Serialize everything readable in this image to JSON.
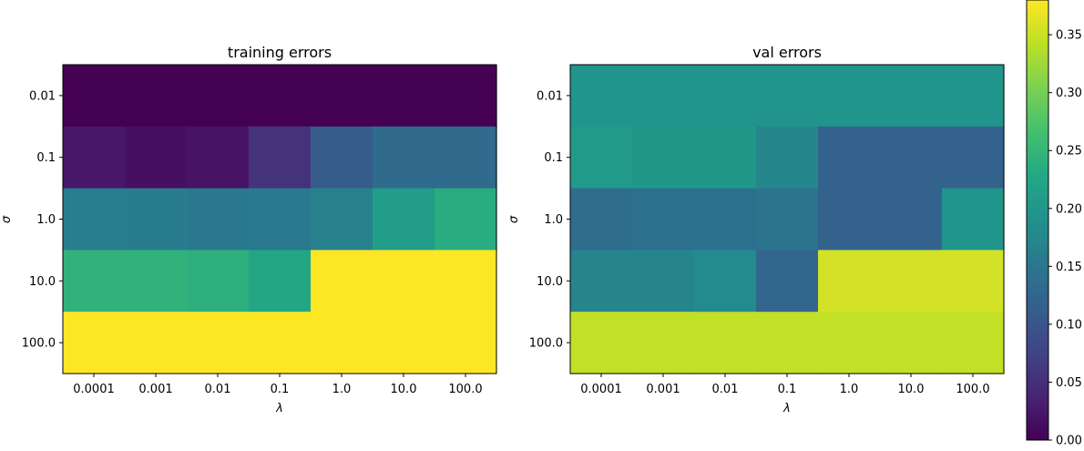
{
  "chart_data": {
    "type": "heatmap",
    "colormap": "viridis",
    "color_range": [
      0,
      0.38
    ],
    "panels": [
      {
        "title": "training errors",
        "xlabel": "λ",
        "ylabel": "σ",
        "x_categories": [
          "0.0001",
          "0.001",
          "0.01",
          "0.1",
          "1.0",
          "10.0",
          "100.0"
        ],
        "y_categories": [
          "0.01",
          "0.1",
          "1.0",
          "10.0",
          "100.0"
        ],
        "values": [
          [
            0.0,
            0.0,
            0.0,
            0.0,
            0.0,
            0.0,
            0.0
          ],
          [
            0.025,
            0.015,
            0.02,
            0.055,
            0.11,
            0.13,
            0.13
          ],
          [
            0.16,
            0.158,
            0.152,
            0.155,
            0.165,
            0.21,
            0.235
          ],
          [
            0.245,
            0.245,
            0.24,
            0.225,
            0.38,
            0.38,
            0.38
          ],
          [
            0.38,
            0.38,
            0.38,
            0.38,
            0.38,
            0.38,
            0.38
          ]
        ]
      },
      {
        "title": "val errors",
        "xlabel": "λ",
        "ylabel": "σ",
        "x_categories": [
          "0.0001",
          "0.001",
          "0.01",
          "0.1",
          "1.0",
          "10.0",
          "100.0"
        ],
        "y_categories": [
          "0.01",
          "0.1",
          "1.0",
          "10.0",
          "100.0"
        ],
        "values": [
          [
            0.195,
            0.195,
            0.195,
            0.195,
            0.195,
            0.195,
            0.195
          ],
          [
            0.205,
            0.2,
            0.2,
            0.175,
            0.12,
            0.12,
            0.12
          ],
          [
            0.135,
            0.14,
            0.14,
            0.145,
            0.12,
            0.12,
            0.195
          ],
          [
            0.17,
            0.17,
            0.18,
            0.125,
            0.355,
            0.355,
            0.355
          ],
          [
            0.345,
            0.345,
            0.345,
            0.345,
            0.345,
            0.345,
            0.345
          ]
        ]
      }
    ],
    "colorbar": {
      "ticks": [
        0.0,
        0.05,
        0.1,
        0.15,
        0.2,
        0.25,
        0.3,
        0.35
      ],
      "tick_labels": [
        "0.00",
        "0.05",
        "0.10",
        "0.15",
        "0.20",
        "0.25",
        "0.30",
        "0.35"
      ]
    }
  }
}
